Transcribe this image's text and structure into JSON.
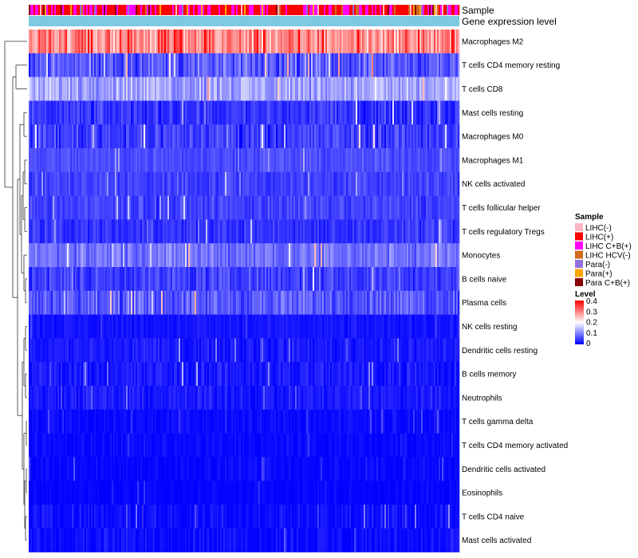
{
  "chart_data": {
    "type": "heatmap",
    "annotation_rows": [
      "Sample",
      "Gene expression level"
    ],
    "rows": [
      {
        "name": "Macrophages M2",
        "mean": 0.29,
        "spread": 0.1
      },
      {
        "name": "T cells CD4 memory resting",
        "mean": 0.07,
        "spread": 0.07
      },
      {
        "name": "T cells CD8",
        "mean": 0.13,
        "spread": 0.07
      },
      {
        "name": "Mast cells resting",
        "mean": 0.04,
        "spread": 0.05
      },
      {
        "name": "Macrophages M0",
        "mean": 0.05,
        "spread": 0.06
      },
      {
        "name": "Macrophages M1",
        "mean": 0.06,
        "spread": 0.03
      },
      {
        "name": "NK cells activated",
        "mean": 0.05,
        "spread": 0.04
      },
      {
        "name": "T cells follicular helper",
        "mean": 0.05,
        "spread": 0.04
      },
      {
        "name": "T cells regulatory  Tregs",
        "mean": 0.04,
        "spread": 0.04
      },
      {
        "name": "Monocytes",
        "mean": 0.09,
        "spread": 0.06
      },
      {
        "name": "B cells naive",
        "mean": 0.05,
        "spread": 0.05
      },
      {
        "name": "Plasma cells",
        "mean": 0.07,
        "spread": 0.06
      },
      {
        "name": "NK cells resting",
        "mean": 0.015,
        "spread": 0.02
      },
      {
        "name": "Dendritic cells resting",
        "mean": 0.02,
        "spread": 0.03
      },
      {
        "name": "B cells memory",
        "mean": 0.02,
        "spread": 0.04
      },
      {
        "name": "Neutrophils",
        "mean": 0.02,
        "spread": 0.03
      },
      {
        "name": "T cells gamma delta",
        "mean": 0.008,
        "spread": 0.02
      },
      {
        "name": "T cells CD4 memory activated",
        "mean": 0.006,
        "spread": 0.02
      },
      {
        "name": "Dendritic cells activated",
        "mean": 0.005,
        "spread": 0.02
      },
      {
        "name": "Eosinophils",
        "mean": 0.004,
        "spread": 0.015
      },
      {
        "name": "T cells CD4 naive",
        "mean": 0.01,
        "spread": 0.03
      },
      {
        "name": "Mast cells activated",
        "mean": 0.01,
        "spread": 0.03
      }
    ],
    "legend": {
      "sample_title": "Sample",
      "sample_groups": [
        {
          "label": "LIHC(-)",
          "color": "#ffb6c1"
        },
        {
          "label": "LIHC(+)",
          "color": "#ff0000"
        },
        {
          "label": "LIHC C+B(+)",
          "color": "#ff00ff"
        },
        {
          "label": "LIHC HCV(-)",
          "color": "#d2691e"
        },
        {
          "label": "Para(-)",
          "color": "#9370db"
        },
        {
          "label": "Para(+)",
          "color": "#ffa500"
        },
        {
          "label": "Para C+B(+)",
          "color": "#8b0000"
        }
      ],
      "level_title": "Level",
      "level_ticks": [
        "0.4",
        "0.3",
        "0.2",
        "0.1",
        "0"
      ],
      "level_range": [
        0,
        0.4
      ],
      "level_colors": [
        "#0000ff",
        "#ffffff",
        "#ff0000"
      ]
    },
    "gene_expression_color": "#7ec8e3",
    "n_samples": 270
  }
}
